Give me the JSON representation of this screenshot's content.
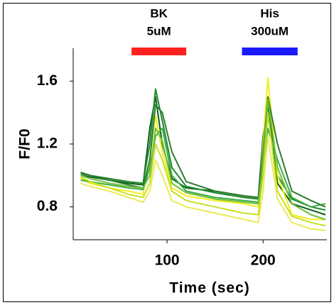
{
  "chart_data": {
    "type": "line",
    "xlabel": "Time (sec)",
    "ylabel": "F/F0",
    "xlim": [
      0,
      265
    ],
    "ylim": [
      0.6,
      1.8
    ],
    "xticks": [
      100,
      200
    ],
    "yticks": [
      0.8,
      1.2,
      1.6
    ],
    "stimuli": [
      {
        "label": "BK",
        "dose": "5uM",
        "start": 63,
        "end": 120,
        "color": "#ff2020"
      },
      {
        "label": "His",
        "dose": "300uM",
        "start": 178,
        "end": 236,
        "color": "#1a1aff"
      }
    ],
    "x": [
      10,
      20,
      40,
      60,
      75,
      82,
      88,
      95,
      105,
      120,
      150,
      180,
      195,
      200,
      205,
      215,
      230,
      250,
      265
    ],
    "series": [
      {
        "color": "#0b5e1a",
        "values": [
          1.0,
          0.99,
          0.97,
          0.95,
          0.94,
          1.3,
          1.5,
          1.2,
          0.98,
          0.92,
          0.9,
          0.87,
          0.86,
          1.25,
          1.45,
          0.95,
          0.82,
          0.78,
          0.75
        ]
      },
      {
        "color": "#1f8a2c",
        "values": [
          1.01,
          1.0,
          0.98,
          0.96,
          0.95,
          1.2,
          1.55,
          1.35,
          1.05,
          0.93,
          0.89,
          0.86,
          0.85,
          1.1,
          1.38,
          1.0,
          0.85,
          0.8,
          0.78
        ]
      },
      {
        "color": "#f2ee1a",
        "values": [
          0.98,
          0.95,
          0.92,
          0.9,
          0.88,
          1.1,
          1.38,
          1.15,
          0.92,
          0.87,
          0.84,
          0.82,
          0.8,
          1.2,
          1.62,
          1.0,
          0.75,
          0.72,
          0.72
        ]
      },
      {
        "color": "#3cb043",
        "values": [
          0.97,
          0.96,
          0.94,
          0.92,
          0.91,
          1.05,
          1.25,
          1.3,
          1.0,
          0.9,
          0.86,
          0.84,
          0.83,
          1.05,
          1.3,
          1.1,
          0.86,
          0.8,
          0.82
        ]
      },
      {
        "color": "#c6df22",
        "values": [
          0.99,
          0.96,
          0.92,
          0.88,
          0.86,
          0.95,
          1.2,
          1.1,
          0.9,
          0.84,
          0.8,
          0.76,
          0.75,
          1.0,
          1.4,
          0.9,
          0.74,
          0.7,
          0.68
        ]
      },
      {
        "color": "#2e7d32",
        "values": [
          1.02,
          1.0,
          0.97,
          0.94,
          0.92,
          1.1,
          1.45,
          1.4,
          1.15,
          0.96,
          0.9,
          0.87,
          0.86,
          1.15,
          1.5,
          1.2,
          0.9,
          0.84,
          0.8
        ]
      },
      {
        "color": "#eaea55",
        "values": [
          0.95,
          0.93,
          0.9,
          0.86,
          0.83,
          0.9,
          1.1,
          1.0,
          0.84,
          0.8,
          0.76,
          0.72,
          0.7,
          0.9,
          1.25,
          0.85,
          0.7,
          0.66,
          0.65
        ]
      },
      {
        "color": "#6fbf3a",
        "values": [
          1.0,
          0.98,
          0.95,
          0.93,
          0.92,
          1.0,
          1.3,
          1.22,
          0.95,
          0.89,
          0.85,
          0.83,
          0.82,
          1.1,
          1.48,
          1.05,
          0.82,
          0.75,
          0.72
        ]
      }
    ]
  }
}
